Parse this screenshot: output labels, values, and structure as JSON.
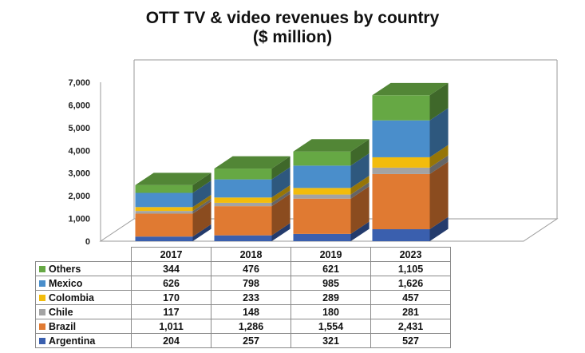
{
  "title_line1": "OTT TV & video revenues by country",
  "title_line2": "($ million)",
  "chart_data": {
    "type": "bar",
    "stacked": true,
    "three_d": true,
    "title": "OTT TV & video revenues by country ($ million)",
    "categories": [
      "2017",
      "2018",
      "2019",
      "2023"
    ],
    "ylim": [
      0,
      7000
    ],
    "yticks": [
      0,
      1000,
      2000,
      3000,
      4000,
      5000,
      6000,
      7000
    ],
    "ytick_labels": [
      "0",
      "1,000",
      "2,000",
      "3,000",
      "4,000",
      "5,000",
      "6,000",
      "7,000"
    ],
    "grid": false,
    "legend": "data-table-below",
    "series": [
      {
        "name": "Argentina",
        "color": "#3a5fae",
        "values": [
          204,
          257,
          321,
          527
        ],
        "labels": [
          "204",
          "257",
          "321",
          "527"
        ]
      },
      {
        "name": "Brazil",
        "color": "#e07a32",
        "values": [
          1011,
          1286,
          1554,
          2431
        ],
        "labels": [
          "1,011",
          "1,286",
          "1,554",
          "2,431"
        ]
      },
      {
        "name": "Chile",
        "color": "#a3a3a3",
        "values": [
          117,
          148,
          180,
          281
        ],
        "labels": [
          "117",
          "148",
          "180",
          "281"
        ]
      },
      {
        "name": "Colombia",
        "color": "#f2bc0c",
        "values": [
          170,
          233,
          289,
          457
        ],
        "labels": [
          "170",
          "233",
          "289",
          "457"
        ]
      },
      {
        "name": "Mexico",
        "color": "#4a8ecb",
        "values": [
          626,
          798,
          985,
          1626
        ],
        "labels": [
          "626",
          "798",
          "985",
          "1,626"
        ]
      },
      {
        "name": "Others",
        "color": "#66a844",
        "values": [
          344,
          476,
          621,
          1105
        ],
        "labels": [
          "344",
          "476",
          "621",
          "1,105"
        ]
      }
    ]
  }
}
